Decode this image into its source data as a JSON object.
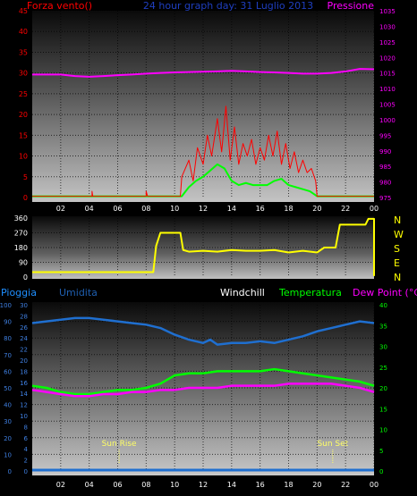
{
  "header": {
    "left_label": "Forza vento()",
    "title": "24 hour graph day: 31 Luglio 2013",
    "right_label": "Pressione"
  },
  "colors": {
    "wind": "#ff0000",
    "gust": "#00ff00",
    "pressure": "#ff00ff",
    "direction": "#ffff00",
    "humidity": "#1f6fd0",
    "rain": "#1f6fd0",
    "temperature": "#00ff00",
    "dewpoint": "#ff00ff",
    "windchill": "#ffffff",
    "sun": "#ffff66",
    "panel_grid": "#000000"
  },
  "hour_ticks": [
    "02",
    "04",
    "06",
    "08",
    "10",
    "12",
    "14",
    "16",
    "18",
    "20",
    "22",
    "00"
  ],
  "legend": {
    "pioggia": "Pioggia",
    "umidita": "Umidita",
    "windchill": "Windchill",
    "temperatura": "Temperatura",
    "dewpoint": "Dew Point (°C)"
  },
  "sun": {
    "rise_label": "Sun Rise",
    "set_label": "Sun Set",
    "rise_hour": 6.1,
    "set_hour": 21.1
  },
  "compass": [
    "N",
    "W",
    "S",
    "E",
    "N"
  ],
  "chart_data": [
    {
      "type": "line",
      "name": "wind-pressure",
      "x_hours": [
        0,
        24
      ],
      "left_axis": {
        "ylim": [
          0,
          45
        ],
        "ticks": [
          "0",
          "5",
          "10",
          "15",
          "20",
          "25",
          "30",
          "35",
          "40",
          "45"
        ]
      },
      "right_axis": {
        "ylim": [
          975,
          1035
        ],
        "ticks": [
          "975",
          "980",
          "985",
          "990",
          "995",
          "1000",
          "1005",
          "1010",
          "1015",
          "1020",
          "1025",
          "1030",
          "1035"
        ]
      },
      "series": [
        {
          "key": "pressure",
          "axis": "right",
          "points": [
            [
              0,
              1014.5
            ],
            [
              1,
              1014.5
            ],
            [
              2,
              1014.5
            ],
            [
              3,
              1014
            ],
            [
              4,
              1013.8
            ],
            [
              5,
              1014
            ],
            [
              6,
              1014.3
            ],
            [
              7,
              1014.5
            ],
            [
              8,
              1014.8
            ],
            [
              9,
              1015
            ],
            [
              10,
              1015.2
            ],
            [
              11,
              1015.3
            ],
            [
              12,
              1015.4
            ],
            [
              13,
              1015.5
            ],
            [
              14,
              1015.7
            ],
            [
              15,
              1015.5
            ],
            [
              16,
              1015.3
            ],
            [
              17,
              1015.2
            ],
            [
              18,
              1015
            ],
            [
              19,
              1014.8
            ],
            [
              20,
              1014.8
            ],
            [
              21,
              1015
            ],
            [
              22,
              1015.5
            ],
            [
              23,
              1016.3
            ],
            [
              24,
              1016.2
            ]
          ]
        },
        {
          "key": "gust",
          "axis": "left",
          "points": [
            [
              0,
              0.3
            ],
            [
              10.5,
              0.3
            ],
            [
              11,
              2.5
            ],
            [
              11.5,
              4
            ],
            [
              12,
              5
            ],
            [
              12.5,
              6.5
            ],
            [
              13,
              8
            ],
            [
              13.5,
              7
            ],
            [
              14,
              4
            ],
            [
              14.5,
              3
            ],
            [
              15,
              3.5
            ],
            [
              15.5,
              3
            ],
            [
              16,
              3
            ],
            [
              16.5,
              3
            ],
            [
              17,
              4
            ],
            [
              17.5,
              4.5
            ],
            [
              18,
              3
            ],
            [
              18.5,
              2.5
            ],
            [
              19,
              2
            ],
            [
              19.5,
              1.5
            ],
            [
              20,
              0.3
            ],
            [
              24,
              0.3
            ]
          ]
        },
        {
          "key": "wind",
          "axis": "left",
          "points": [
            [
              0,
              0.3
            ],
            [
              4.2,
              0.3
            ],
            [
              4.2,
              1.5
            ],
            [
              4.25,
              0.3
            ],
            [
              8,
              0.3
            ],
            [
              8,
              1.5
            ],
            [
              8.1,
              0.3
            ],
            [
              10.4,
              0.3
            ],
            [
              10.5,
              5
            ],
            [
              11,
              9
            ],
            [
              11.3,
              4
            ],
            [
              11.6,
              12
            ],
            [
              12,
              8
            ],
            [
              12.3,
              15
            ],
            [
              12.6,
              10
            ],
            [
              13,
              19
            ],
            [
              13.3,
              11
            ],
            [
              13.6,
              22
            ],
            [
              13.9,
              9
            ],
            [
              14.2,
              17
            ],
            [
              14.5,
              8
            ],
            [
              14.8,
              13
            ],
            [
              15.1,
              10
            ],
            [
              15.4,
              14
            ],
            [
              15.7,
              8
            ],
            [
              16,
              12
            ],
            [
              16.3,
              9
            ],
            [
              16.6,
              15
            ],
            [
              16.9,
              10
            ],
            [
              17.2,
              16
            ],
            [
              17.5,
              8
            ],
            [
              17.8,
              13
            ],
            [
              18.1,
              7
            ],
            [
              18.4,
              11
            ],
            [
              18.7,
              6
            ],
            [
              19,
              9
            ],
            [
              19.3,
              6
            ],
            [
              19.6,
              7
            ],
            [
              19.9,
              4
            ],
            [
              20,
              0.3
            ],
            [
              24,
              0.3
            ]
          ]
        }
      ]
    },
    {
      "type": "line",
      "name": "wind-direction",
      "x_hours": [
        0,
        24
      ],
      "ylim": [
        0,
        360
      ],
      "yticks": [
        "0",
        "90",
        "180",
        "270",
        "360"
      ],
      "series": [
        {
          "key": "direction",
          "points": [
            [
              0,
              30
            ],
            [
              8.5,
              30
            ],
            [
              8.7,
              190
            ],
            [
              9,
              270
            ],
            [
              10.4,
              270
            ],
            [
              10.6,
              165
            ],
            [
              11,
              155
            ],
            [
              12,
              160
            ],
            [
              13,
              155
            ],
            [
              14,
              165
            ],
            [
              15,
              160
            ],
            [
              16,
              160
            ],
            [
              17,
              165
            ],
            [
              18,
              150
            ],
            [
              19,
              160
            ],
            [
              20,
              150
            ],
            [
              20.5,
              180
            ],
            [
              21.3,
              180
            ],
            [
              21.6,
              320
            ],
            [
              23.4,
              320
            ],
            [
              23.6,
              355
            ],
            [
              24,
              355
            ],
            [
              24,
              10
            ],
            [
              24,
              100
            ]
          ]
        }
      ]
    },
    {
      "type": "line",
      "name": "temperature-humidity",
      "x_hours": [
        0,
        24
      ],
      "left_axis_rain": {
        "ylim": [
          0,
          30
        ],
        "ticks": [
          "0",
          "2",
          "4",
          "6",
          "8",
          "10",
          "12",
          "14",
          "16",
          "18",
          "20",
          "22",
          "24",
          "26",
          "28",
          "30"
        ]
      },
      "left_axis_humidity": {
        "ylim": [
          0,
          100
        ],
        "ticks": [
          "0",
          "10",
          "20",
          "30",
          "40",
          "50",
          "60",
          "70",
          "80",
          "90",
          "100"
        ]
      },
      "right_axis": {
        "ylim": [
          0,
          40
        ],
        "ticks": [
          "0",
          "5",
          "10",
          "15",
          "20",
          "25",
          "30",
          "35",
          "40"
        ]
      },
      "series": [
        {
          "key": "humidity",
          "axis": "humidity",
          "points": [
            [
              0,
              89
            ],
            [
              1,
              90
            ],
            [
              2,
              91
            ],
            [
              3,
              92
            ],
            [
              4,
              92
            ],
            [
              5,
              91
            ],
            [
              6,
              90
            ],
            [
              7,
              89
            ],
            [
              8,
              88
            ],
            [
              9,
              86
            ],
            [
              10,
              82
            ],
            [
              11,
              79
            ],
            [
              12,
              77
            ],
            [
              12.5,
              79
            ],
            [
              13,
              76
            ],
            [
              14,
              77
            ],
            [
              15,
              77
            ],
            [
              16,
              78
            ],
            [
              17,
              77
            ],
            [
              18,
              79
            ],
            [
              19,
              81
            ],
            [
              20,
              84
            ],
            [
              21,
              86
            ],
            [
              22,
              88
            ],
            [
              23,
              90
            ],
            [
              24,
              89
            ]
          ]
        },
        {
          "key": "temperature",
          "axis": "right",
          "points": [
            [
              0,
              20.5
            ],
            [
              1,
              20
            ],
            [
              2,
              19
            ],
            [
              3,
              18.5
            ],
            [
              4,
              18.5
            ],
            [
              5,
              19
            ],
            [
              6,
              19.5
            ],
            [
              7,
              19.5
            ],
            [
              8,
              20
            ],
            [
              9,
              21
            ],
            [
              10,
              23
            ],
            [
              11,
              23.5
            ],
            [
              12,
              23.5
            ],
            [
              13,
              24
            ],
            [
              14,
              24
            ],
            [
              15,
              24
            ],
            [
              16,
              24
            ],
            [
              17,
              24.5
            ],
            [
              18,
              24
            ],
            [
              19,
              23.5
            ],
            [
              20,
              23
            ],
            [
              21,
              22.5
            ],
            [
              22,
              22
            ],
            [
              23,
              21.5
            ],
            [
              24,
              20.5
            ]
          ]
        },
        {
          "key": "dewpoint",
          "axis": "right",
          "points": [
            [
              0,
              19.5
            ],
            [
              1,
              19
            ],
            [
              2,
              18.5
            ],
            [
              3,
              18
            ],
            [
              4,
              18
            ],
            [
              5,
              18.5
            ],
            [
              6,
              18.5
            ],
            [
              7,
              19
            ],
            [
              8,
              19
            ],
            [
              9,
              19.5
            ],
            [
              10,
              19.5
            ],
            [
              11,
              20
            ],
            [
              12,
              20
            ],
            [
              13,
              20
            ],
            [
              14,
              20.5
            ],
            [
              15,
              20.5
            ],
            [
              16,
              20.5
            ],
            [
              17,
              20.5
            ],
            [
              18,
              21
            ],
            [
              19,
              21
            ],
            [
              20,
              21
            ],
            [
              21,
              21
            ],
            [
              22,
              20.5
            ],
            [
              23,
              20
            ],
            [
              24,
              19
            ]
          ]
        },
        {
          "key": "rain",
          "axis": "rain",
          "points": [
            [
              0,
              0
            ],
            [
              24,
              0
            ]
          ]
        }
      ]
    }
  ]
}
